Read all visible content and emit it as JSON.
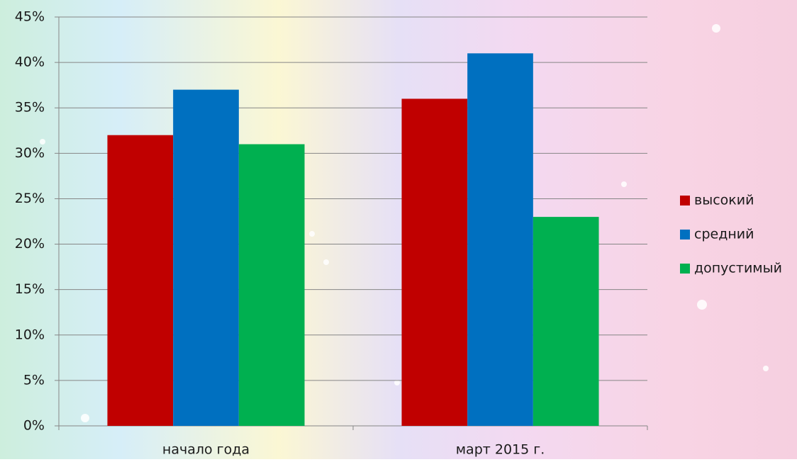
{
  "chart_data": {
    "type": "bar",
    "categories": [
      "начало года",
      "март 2015 г."
    ],
    "series": [
      {
        "name": "высокий",
        "color": "#c00000",
        "values": [
          32,
          36
        ]
      },
      {
        "name": "средний",
        "color": "#0070c0",
        "values": [
          37,
          41
        ]
      },
      {
        "name": "допустимый",
        "color": "#00b050",
        "values": [
          31,
          23
        ]
      }
    ],
    "ylim": [
      0,
      45
    ],
    "yticks": [
      {
        "value": 0,
        "label": "0%"
      },
      {
        "value": 5,
        "label": "5%"
      },
      {
        "value": 10,
        "label": "10%"
      },
      {
        "value": 15,
        "label": "15%"
      },
      {
        "value": 20,
        "label": "20%"
      },
      {
        "value": 25,
        "label": "25%"
      },
      {
        "value": 30,
        "label": "30%"
      },
      {
        "value": 35,
        "label": "35%"
      },
      {
        "value": 40,
        "label": "40%"
      },
      {
        "value": 45,
        "label": "45%"
      }
    ],
    "grid": true,
    "legend": "right"
  }
}
